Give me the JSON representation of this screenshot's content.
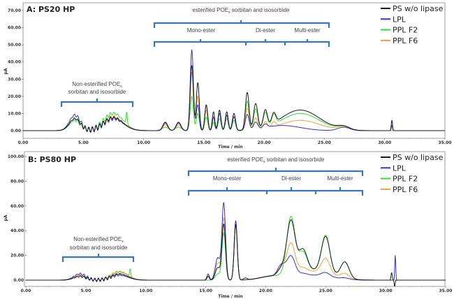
{
  "chart_data": [
    {
      "type": "line",
      "title": "A: PS20 HP",
      "xlabel": "Time / min",
      "ylabel": "pA",
      "xlim": [
        0,
        35
      ],
      "ylim": [
        0,
        70
      ],
      "xticks": [
        "0.00",
        "5.00",
        "10.00",
        "15.00",
        "20.00",
        "25.00",
        "30.00",
        "35.00"
      ],
      "yticks": [
        "0.00",
        "10.00",
        "20.00",
        "30.00",
        "40.00",
        "50.00",
        "60.00",
        "70.00"
      ],
      "grid": false,
      "legend_placement": "top-right",
      "annotations": {
        "top": {
          "pre": "esterified POE",
          "sub": "x",
          "post": " sorbitan and isosorbide"
        },
        "mono": "Mono-ester",
        "di": "Di-ester",
        "multi": "Multi-ester",
        "non1": {
          "pre": "Non-esterified POE",
          "sub": "x"
        },
        "non2": "sorbitan and isosorbide"
      },
      "series": [
        {
          "name": "PPL F2",
          "color": "#33dd33",
          "peaks_rt_height_sigma": [
            [
              4.3,
              6,
              0.45
            ],
            [
              7.5,
              10,
              0.8
            ],
            [
              8.6,
              7,
              0.05
            ],
            [
              11.8,
              2,
              0.25
            ],
            [
              12.9,
              2,
              0.25
            ],
            [
              14.0,
              20,
              0.13
            ],
            [
              14.5,
              10,
              0.12
            ],
            [
              15.2,
              8,
              0.12
            ],
            [
              15.8,
              5,
              0.1
            ],
            [
              16.3,
              7,
              0.12
            ],
            [
              16.9,
              7,
              0.12
            ],
            [
              17.5,
              6,
              0.13
            ],
            [
              18.6,
              17,
              0.15
            ],
            [
              19.3,
              12,
              0.17
            ],
            [
              20.1,
              9,
              0.17
            ],
            [
              20.8,
              6,
              0.17
            ],
            [
              23.0,
              10,
              1.6
            ],
            [
              26.6,
              2,
              0.5
            ]
          ],
          "ripple_height": 3
        },
        {
          "name": "PPL F6",
          "color": "#f0a040",
          "peaks_rt_height_sigma": [
            [
              4.3,
              7,
              0.45
            ],
            [
              7.5,
              8,
              0.8
            ],
            [
              11.8,
              3.5,
              0.2
            ],
            [
              12.9,
              3.5,
              0.2
            ],
            [
              14.0,
              34,
              0.13
            ],
            [
              14.5,
              20,
              0.12
            ],
            [
              15.2,
              12,
              0.12
            ],
            [
              15.8,
              8,
              0.1
            ],
            [
              16.3,
              10,
              0.12
            ],
            [
              16.9,
              9,
              0.12
            ],
            [
              17.5,
              8,
              0.13
            ],
            [
              18.6,
              13,
              0.15
            ],
            [
              19.3,
              7,
              0.17
            ],
            [
              20.1,
              4,
              0.17
            ],
            [
              20.8,
              3,
              0.17
            ],
            [
              23.0,
              6,
              1.6
            ],
            [
              26.6,
              2,
              0.5
            ]
          ],
          "ripple_height": 2.5
        },
        {
          "name": "LPL",
          "color": "#3333cc",
          "peaks_rt_height_sigma": [
            [
              4.3,
              9,
              0.45
            ],
            [
              7.5,
              7,
              0.8
            ],
            [
              11.8,
              5,
              0.2
            ],
            [
              12.9,
              5,
              0.2
            ],
            [
              14.0,
              47,
              0.13
            ],
            [
              14.5,
              15,
              0.12
            ],
            [
              15.2,
              15,
              0.12
            ],
            [
              15.8,
              8,
              0.1
            ],
            [
              16.3,
              10,
              0.12
            ],
            [
              16.9,
              9,
              0.12
            ],
            [
              17.5,
              8,
              0.13
            ],
            [
              18.6,
              9,
              0.15
            ],
            [
              19.3,
              4,
              0.17
            ],
            [
              20.1,
              2,
              0.17
            ],
            [
              21.5,
              3,
              1.5
            ],
            [
              26.6,
              2,
              0.5
            ],
            [
              30.6,
              3,
              0.05
            ]
          ],
          "ripple_height": 3.5
        },
        {
          "name": "PS w/o lipase",
          "color": "#1a1a1a",
          "peaks_rt_height_sigma": [
            [
              4.3,
              7,
              0.45
            ],
            [
              7.5,
              7.5,
              0.8
            ],
            [
              11.8,
              4.5,
              0.2
            ],
            [
              12.9,
              4.5,
              0.2
            ],
            [
              14.0,
              38,
              0.13
            ],
            [
              14.5,
              28,
              0.12
            ],
            [
              15.2,
              15,
              0.12
            ],
            [
              15.8,
              11,
              0.1
            ],
            [
              16.3,
              12,
              0.12
            ],
            [
              16.9,
              11,
              0.12
            ],
            [
              17.5,
              10,
              0.13
            ],
            [
              18.6,
              22,
              0.15
            ],
            [
              19.3,
              15,
              0.17
            ],
            [
              20.1,
              10,
              0.17
            ],
            [
              20.8,
              6,
              0.17
            ],
            [
              23.0,
              12,
              1.6
            ],
            [
              26.6,
              2,
              0.5
            ],
            [
              30.6,
              6,
              0.05
            ]
          ],
          "ripple_height": 2.5
        }
      ]
    },
    {
      "type": "line",
      "title": "B: PS80 HP",
      "xlabel": "Time / min",
      "ylabel": "pA",
      "xlim": [
        0,
        35
      ],
      "ylim": [
        0,
        100
      ],
      "xticks": [
        "0.00",
        "5.00",
        "10.00",
        "15.00",
        "20.00",
        "25.00",
        "30.00",
        "35.00"
      ],
      "yticks": [
        "0.00",
        "20.00",
        "40.00",
        "60.00",
        "80.00",
        "100.00"
      ],
      "grid": false,
      "legend_placement": "top-right",
      "annotations": {
        "top": {
          "pre": "esterified POE",
          "sub": "x",
          "post": " sorbitan and isosorbide"
        },
        "mono": "Mono-ester",
        "di": "Di-ester",
        "multi": "Multi-ester",
        "non1": {
          "pre": "Non-esterified POE",
          "sub": "x"
        },
        "non2": "sorbitan and isosorbide"
      },
      "series": [
        {
          "name": "PPL F2",
          "color": "#33dd33",
          "peaks_rt_height_sigma": [
            [
              4.5,
              3,
              0.5
            ],
            [
              7.8,
              7,
              0.7
            ],
            [
              8.7,
              6,
              0.05
            ],
            [
              16.0,
              5,
              0.2
            ],
            [
              16.5,
              38,
              0.15
            ],
            [
              17.5,
              45,
              0.13
            ],
            [
              20.5,
              3,
              1.0
            ],
            [
              22.1,
              47,
              0.35
            ],
            [
              23.1,
              16,
              0.35
            ],
            [
              25.0,
              30,
              0.35
            ],
            [
              26.6,
              13,
              0.35
            ],
            [
              24.0,
              8,
              1.5
            ]
          ],
          "ripple_height": 2
        },
        {
          "name": "PPL F6",
          "color": "#f0a040",
          "peaks_rt_height_sigma": [
            [
              4.5,
              4,
              0.5
            ],
            [
              7.8,
              6.5,
              0.7
            ],
            [
              15.2,
              4,
              0.1
            ],
            [
              16.0,
              14,
              0.2
            ],
            [
              16.5,
              50,
              0.15
            ],
            [
              17.5,
              45,
              0.13
            ],
            [
              20.5,
              3,
              1.0
            ],
            [
              21.3,
              6,
              0.3
            ],
            [
              22.1,
              26,
              0.35
            ],
            [
              23.1,
              4,
              0.35
            ],
            [
              25.0,
              12,
              0.35
            ],
            [
              26.6,
              4,
              0.35
            ],
            [
              24.0,
              7,
              1.5
            ]
          ],
          "ripple_height": 2
        },
        {
          "name": "LPL",
          "color": "#3333cc",
          "peaks_rt_height_sigma": [
            [
              4.5,
              5,
              0.5
            ],
            [
              7.8,
              4,
              0.7
            ],
            [
              15.2,
              5,
              0.1
            ],
            [
              16.0,
              18,
              0.2
            ],
            [
              16.5,
              62,
              0.15
            ],
            [
              17.5,
              48,
              0.13
            ],
            [
              20.5,
              3,
              1.0
            ],
            [
              21.3,
              9,
              0.3
            ],
            [
              22.1,
              17,
              0.35
            ],
            [
              23.1,
              2,
              0.35
            ],
            [
              25.0,
              3,
              0.35
            ],
            [
              24.0,
              4,
              1.5
            ],
            [
              26.6,
              1,
              0.35
            ],
            [
              30.8,
              20,
              0.04
            ]
          ],
          "ripple_height": 3
        },
        {
          "name": "PS w/o lipase",
          "color": "#1a1a1a",
          "peaks_rt_height_sigma": [
            [
              4.5,
              3,
              0.5
            ],
            [
              7.8,
              5,
              0.7
            ],
            [
              15.2,
              3,
              0.1
            ],
            [
              16.0,
              10,
              0.2
            ],
            [
              16.5,
              45,
              0.15
            ],
            [
              17.5,
              45,
              0.13
            ],
            [
              18.3,
              1.5,
              0.15
            ],
            [
              20.5,
              3,
              1.0
            ],
            [
              21.3,
              5,
              0.3
            ],
            [
              22.1,
              44,
              0.35
            ],
            [
              23.1,
              18,
              0.35
            ],
            [
              25.0,
              29,
              0.35
            ],
            [
              26.6,
              13,
              0.35
            ],
            [
              24.0,
              8,
              1.5
            ],
            [
              30.5,
              6,
              0.05
            ],
            [
              30.75,
              -5,
              0.04
            ]
          ],
          "ripple_height": 2
        }
      ]
    }
  ],
  "legend": [
    "PS w/o lipase",
    "LPL",
    "PPL F2",
    "PPL F6"
  ]
}
